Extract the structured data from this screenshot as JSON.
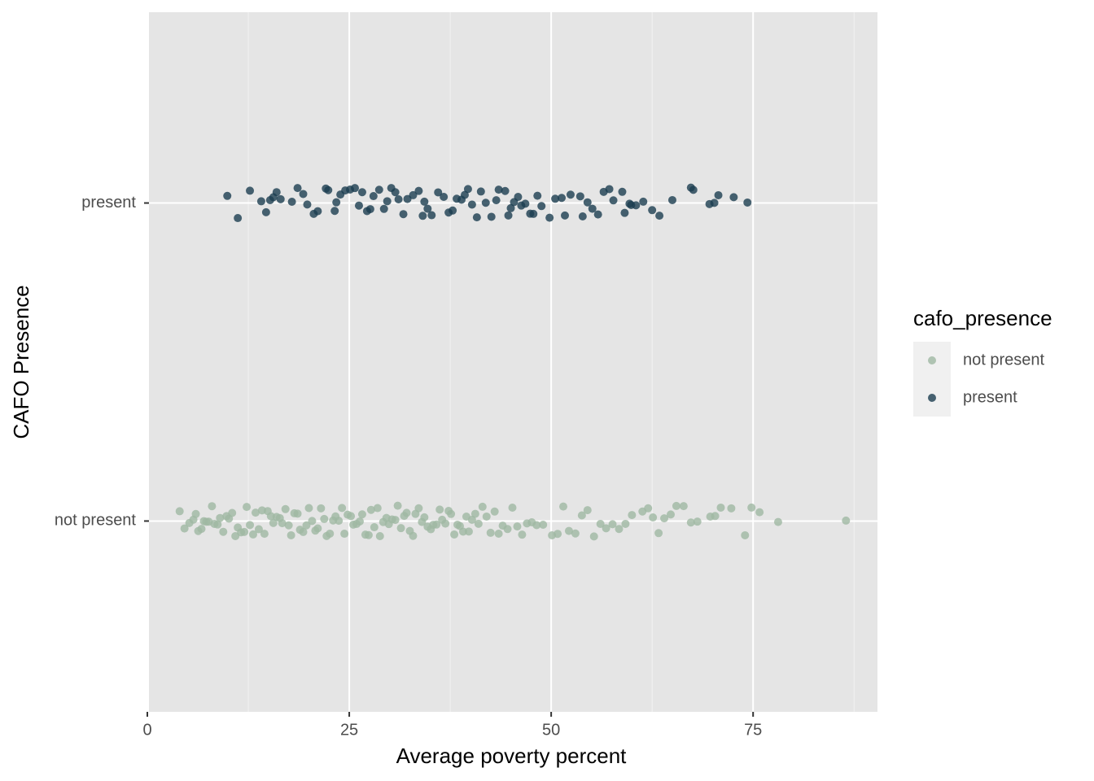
{
  "chart_data": {
    "type": "strip",
    "x_label": "Average poverty percent",
    "y_label": "CAFO Presence",
    "categories": [
      "not present",
      "present"
    ],
    "xlim": [
      0.2,
      90.4
    ],
    "xticks": [
      0,
      25,
      50,
      75
    ],
    "xminor": [
      12.5,
      37.5,
      62.5,
      87.5
    ],
    "grid": true,
    "legend_title": "cafo_presence",
    "legend_position": "right",
    "series": [
      {
        "name": "not present",
        "color": "#9fb8a3",
        "values": [
          4.0,
          4.6,
          5.2,
          5.7,
          6.0,
          6.3,
          6.7,
          7.0,
          7.3,
          7.6,
          8.0,
          8.3,
          8.7,
          9.0,
          9.4,
          9.8,
          10.1,
          10.5,
          10.9,
          11.2,
          11.6,
          12.0,
          12.3,
          12.7,
          13.1,
          13.4,
          13.8,
          14.2,
          14.5,
          14.9,
          15.3,
          15.6,
          16.0,
          16.4,
          16.7,
          17.1,
          17.5,
          17.8,
          18.2,
          18.6,
          18.9,
          19.3,
          19.7,
          20.0,
          20.4,
          20.8,
          21.1,
          21.5,
          21.9,
          22.2,
          22.6,
          23.0,
          23.3,
          23.7,
          24.1,
          24.4,
          24.8,
          25.2,
          25.5,
          25.9,
          26.3,
          26.6,
          27.0,
          27.4,
          27.7,
          28.1,
          28.5,
          28.8,
          29.2,
          29.6,
          29.9,
          30.3,
          30.7,
          31.0,
          31.4,
          31.8,
          32.1,
          32.5,
          32.9,
          33.2,
          33.6,
          34.0,
          34.3,
          34.7,
          35.1,
          35.4,
          35.8,
          36.2,
          36.5,
          36.9,
          37.3,
          37.6,
          38.0,
          38.4,
          38.7,
          39.1,
          39.5,
          39.8,
          40.2,
          40.6,
          41.0,
          41.5,
          42.0,
          42.5,
          43.0,
          43.5,
          44.0,
          44.6,
          45.2,
          45.8,
          46.4,
          47.0,
          47.6,
          48.2,
          49.0,
          50.1,
          50.8,
          51.5,
          52.2,
          53.0,
          53.8,
          54.5,
          55.3,
          56.1,
          56.8,
          57.6,
          58.4,
          59.2,
          60.0,
          61.3,
          62.0,
          62.6,
          63.3,
          64.0,
          64.8,
          65.5,
          66.4,
          67.3,
          68.1,
          69.7,
          70.3,
          71.0,
          72.3,
          74.0,
          74.8,
          75.8,
          78.1,
          86.5
        ]
      },
      {
        "name": "present",
        "color": "#1c3d50",
        "values": [
          9.9,
          11.2,
          12.7,
          14.1,
          14.7,
          15.2,
          15.6,
          16.0,
          16.5,
          17.9,
          18.6,
          19.3,
          19.8,
          20.6,
          21.1,
          22.1,
          22.4,
          23.2,
          23.4,
          23.9,
          24.5,
          25.1,
          25.7,
          26.2,
          26.6,
          27.2,
          27.6,
          28.0,
          28.7,
          29.3,
          29.7,
          30.2,
          30.7,
          31.1,
          31.7,
          32.2,
          32.9,
          33.6,
          34.1,
          34.3,
          34.7,
          35.2,
          36.0,
          36.7,
          37.3,
          37.8,
          38.3,
          38.9,
          39.3,
          39.7,
          40.2,
          40.8,
          41.3,
          41.9,
          42.6,
          43.2,
          43.5,
          44.3,
          44.7,
          45.0,
          45.4,
          45.9,
          46.3,
          46.8,
          47.4,
          47.8,
          48.3,
          48.8,
          49.8,
          50.5,
          51.3,
          51.7,
          52.4,
          53.6,
          53.9,
          54.5,
          55.1,
          55.8,
          56.5,
          57.2,
          57.7,
          58.8,
          59.1,
          59.7,
          59.9,
          60.5,
          61.4,
          62.5,
          63.4,
          65.0,
          67.3,
          67.6,
          69.6,
          70.2,
          70.7,
          72.6,
          74.3
        ]
      }
    ]
  }
}
